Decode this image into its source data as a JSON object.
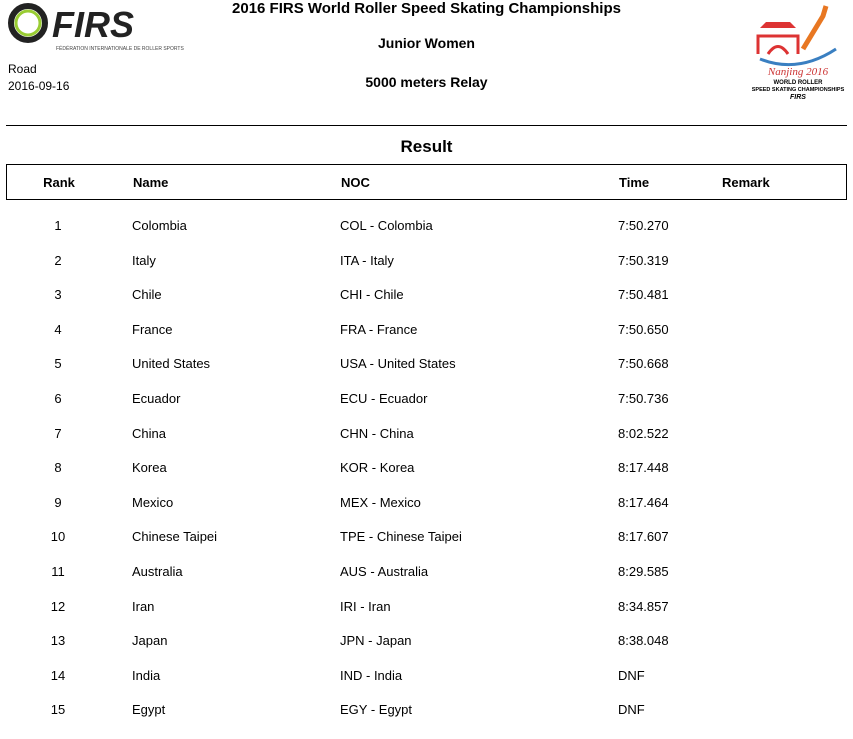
{
  "header": {
    "title": "2016 FIRS World Roller Speed Skating Championships",
    "category": "Junior Women",
    "event": "5000 meters Relay",
    "discipline": "Road",
    "date": "2016-09-16",
    "logo_left": "FIRS - FÉDÉRATION INTERNATIONALE DE ROLLER SPORTS",
    "logo_right": "Nanjing 2016 WORLD ROLLER SPEED SKATING CHAMPIONSHIPS FIRS"
  },
  "section": "Result",
  "columns": {
    "rank": "Rank",
    "name": "Name",
    "noc": "NOC",
    "time": "Time",
    "remark": "Remark"
  },
  "rows": [
    {
      "rank": "1",
      "name": "Colombia",
      "noc": "COL - Colombia",
      "time": "7:50.270",
      "remark": ""
    },
    {
      "rank": "2",
      "name": "Italy",
      "noc": "ITA - Italy",
      "time": "7:50.319",
      "remark": ""
    },
    {
      "rank": "3",
      "name": "Chile",
      "noc": "CHI - Chile",
      "time": "7:50.481",
      "remark": ""
    },
    {
      "rank": "4",
      "name": "France",
      "noc": "FRA - France",
      "time": "7:50.650",
      "remark": ""
    },
    {
      "rank": "5",
      "name": "United States",
      "noc": "USA - United States",
      "time": "7:50.668",
      "remark": ""
    },
    {
      "rank": "6",
      "name": "Ecuador",
      "noc": "ECU - Ecuador",
      "time": "7:50.736",
      "remark": ""
    },
    {
      "rank": "7",
      "name": "China",
      "noc": "CHN - China",
      "time": "8:02.522",
      "remark": ""
    },
    {
      "rank": "8",
      "name": "Korea",
      "noc": "KOR - Korea",
      "time": "8:17.448",
      "remark": ""
    },
    {
      "rank": "9",
      "name": "Mexico",
      "noc": "MEX - Mexico",
      "time": "8:17.464",
      "remark": ""
    },
    {
      "rank": "10",
      "name": "Chinese Taipei",
      "noc": "TPE - Chinese Taipei",
      "time": "8:17.607",
      "remark": ""
    },
    {
      "rank": "11",
      "name": "Australia",
      "noc": "AUS - Australia",
      "time": "8:29.585",
      "remark": ""
    },
    {
      "rank": "12",
      "name": "Iran",
      "noc": "IRI - Iran",
      "time": "8:34.857",
      "remark": ""
    },
    {
      "rank": "13",
      "name": "Japan",
      "noc": "JPN - Japan",
      "time": "8:38.048",
      "remark": ""
    },
    {
      "rank": "14",
      "name": "India",
      "noc": "IND - India",
      "time": "DNF",
      "remark": ""
    },
    {
      "rank": "15",
      "name": "Egypt",
      "noc": "EGY - Egypt",
      "time": "DNF",
      "remark": ""
    }
  ]
}
